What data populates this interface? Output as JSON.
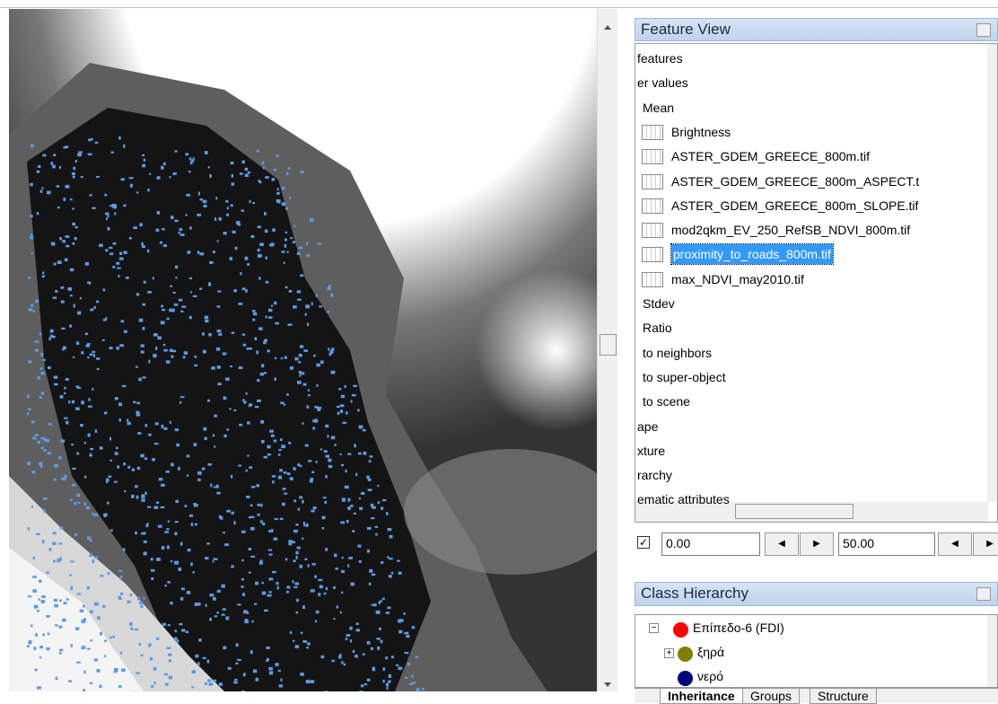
{
  "feature_view": {
    "title": "Feature View",
    "items": [
      "features",
      "er values",
      "Mean",
      "Brightness",
      "ASTER_GDEM_GREECE_800m.tif",
      "ASTER_GDEM_GREECE_800m_ASPECT.t",
      "ASTER_GDEM_GREECE_800m_SLOPE.tif",
      "mod2qkm_EV_250_RefSB_NDVI_800m.tif",
      "proximity_to_roads_800m.tif",
      "max_NDVI_may2010.tif",
      "Stdev",
      "Ratio",
      "to neighbors",
      "to super-object",
      "to scene",
      "ape",
      "xture",
      "rarchy",
      "ematic attributes"
    ],
    "selected_item": "proximity_to_roads_800m.tif",
    "min_value": "0.00",
    "max_value": "50.00"
  },
  "class_hierarchy": {
    "title": "Class Hierarchy",
    "classes": [
      {
        "label": "Επίπεδο-6 (FDI)",
        "color": "#ff0000"
      },
      {
        "label": "ξηρά",
        "color": "#808000"
      },
      {
        "label": "νερό",
        "color": "#000080"
      }
    ],
    "tabs": [
      "Inheritance",
      "Groups",
      "Structure"
    ]
  }
}
